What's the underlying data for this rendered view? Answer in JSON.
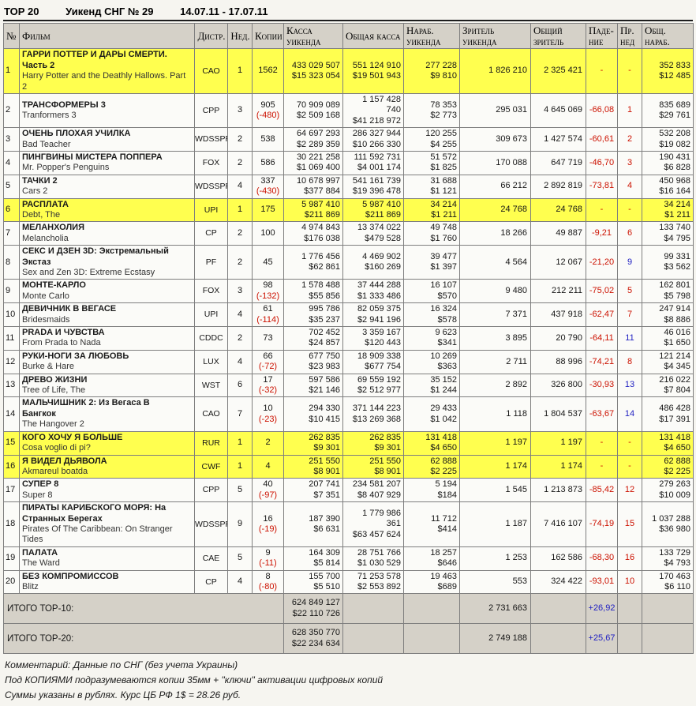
{
  "title": {
    "name": "ТОР 20",
    "subtitle": "Уикенд СНГ № 29",
    "dates": "14.07.11 - 17.07.11"
  },
  "columns": [
    "№",
    "Фильм",
    "Дистр.",
    "Нед.",
    "Копии",
    "Касса уикенда",
    "Общая касса",
    "Нараб. уикенда",
    "Зритель уикенда",
    "Общий зритель",
    "Паде-ние",
    "Пр. нед",
    "Общ. нараб."
  ],
  "colors": {
    "highlight_row": "#ffff4f",
    "header_bg": "#d5d1c8",
    "negative": "#cc1100",
    "positive": "#2121c2"
  },
  "rows": [
    {
      "rank": "1",
      "film_ru": "ГАРРИ ПОТТЕР И ДАРЫ СМЕРТИ.\nЧасть 2",
      "film_en": "Harry Potter and the Deathly Hallows. Part 2",
      "distributor": "САО",
      "week": "1",
      "copies": "1562",
      "copies_change": "",
      "weekend_rub": "433 029 507",
      "weekend_usd": "$15 323 054",
      "total_rub": "551 124 910",
      "total_usd": "$19 501 943",
      "narab_rub": "277 228",
      "narab_usd": "$9 810",
      "viewers_weekend": "1 826 210",
      "viewers_total": "2 325 421",
      "drop": "-",
      "drop_class": "down",
      "prev_week": "-",
      "prev_class": "down",
      "cume_narab_rub": "352 833",
      "cume_narab_usd": "$12 485",
      "row_class": "highlight"
    },
    {
      "rank": "2",
      "film_ru": "ТРАНСФОРМЕРЫ 3",
      "film_en": "Tranformers 3",
      "distributor": "CPP",
      "week": "3",
      "copies": "905",
      "copies_change": "(-480)",
      "weekend_rub": "70 909 089",
      "weekend_usd": "$2 509 168",
      "total_rub": "1 157 428 740",
      "total_usd": "$41 218 972",
      "narab_rub": "78 353",
      "narab_usd": "$2 773",
      "viewers_weekend": "295 031",
      "viewers_total": "4 645 069",
      "drop": "-66,08",
      "drop_class": "down",
      "prev_week": "1",
      "prev_class": "down",
      "cume_narab_rub": "835 689",
      "cume_narab_usd": "$29 761",
      "row_class": "normal"
    },
    {
      "rank": "3",
      "film_ru": "ОЧЕНЬ ПЛОХАЯ УЧИЛКА",
      "film_en": "Bad Teacher",
      "distributor": "WDSSPR",
      "week": "2",
      "copies": "538",
      "copies_change": "",
      "weekend_rub": "64 697 293",
      "weekend_usd": "$2 289 359",
      "total_rub": "286 327 944",
      "total_usd": "$10 266 330",
      "narab_rub": "120 255",
      "narab_usd": "$4 255",
      "viewers_weekend": "309 673",
      "viewers_total": "1 427 574",
      "drop": "-60,61",
      "drop_class": "down",
      "prev_week": "2",
      "prev_class": "down",
      "cume_narab_rub": "532 208",
      "cume_narab_usd": "$19 082",
      "row_class": "normal"
    },
    {
      "rank": "4",
      "film_ru": "ПИНГВИНЫ МИСТЕРА ПОППЕРА",
      "film_en": "Mr. Popper's Penguins",
      "distributor": "FOX",
      "week": "2",
      "copies": "586",
      "copies_change": "",
      "weekend_rub": "30 221 258",
      "weekend_usd": "$1 069 400",
      "total_rub": "111 592 731",
      "total_usd": "$4 001 174",
      "narab_rub": "51 572",
      "narab_usd": "$1 825",
      "viewers_weekend": "170 088",
      "viewers_total": "647 719",
      "drop": "-46,70",
      "drop_class": "down",
      "prev_week": "3",
      "prev_class": "down",
      "cume_narab_rub": "190 431",
      "cume_narab_usd": "$6 828",
      "row_class": "normal"
    },
    {
      "rank": "5",
      "film_ru": "ТАЧКИ 2",
      "film_en": "Cars 2",
      "distributor": "WDSSPR",
      "week": "4",
      "copies": "337",
      "copies_change": "(-430)",
      "weekend_rub": "10 678 997",
      "weekend_usd": "$377 884",
      "total_rub": "541 161 739",
      "total_usd": "$19 396 478",
      "narab_rub": "31 688",
      "narab_usd": "$1 121",
      "viewers_weekend": "66 212",
      "viewers_total": "2 892 819",
      "drop": "-73,81",
      "drop_class": "down",
      "prev_week": "4",
      "prev_class": "down",
      "cume_narab_rub": "450 968",
      "cume_narab_usd": "$16 164",
      "row_class": "normal"
    },
    {
      "rank": "6",
      "film_ru": "РАСПЛАТА",
      "film_en": "Debt, The",
      "distributor": "UPI",
      "week": "1",
      "copies": "175",
      "copies_change": "",
      "weekend_rub": "5 987 410",
      "weekend_usd": "$211 869",
      "total_rub": "5 987 410",
      "total_usd": "$211 869",
      "narab_rub": "34 214",
      "narab_usd": "$1 211",
      "viewers_weekend": "24 768",
      "viewers_total": "24 768",
      "drop": "-",
      "drop_class": "down",
      "prev_week": "-",
      "prev_class": "down",
      "cume_narab_rub": "34 214",
      "cume_narab_usd": "$1 211",
      "row_class": "highlight"
    },
    {
      "rank": "7",
      "film_ru": "МЕЛАНХОЛИЯ",
      "film_en": "Melancholia",
      "distributor": "CP",
      "week": "2",
      "copies": "100",
      "copies_change": "",
      "weekend_rub": "4 974 843",
      "weekend_usd": "$176 038",
      "total_rub": "13 374 022",
      "total_usd": "$479 528",
      "narab_rub": "49 748",
      "narab_usd": "$1 760",
      "viewers_weekend": "18 266",
      "viewers_total": "49 887",
      "drop": "-9,21",
      "drop_class": "down",
      "prev_week": "6",
      "prev_class": "down",
      "cume_narab_rub": "133 740",
      "cume_narab_usd": "$4 795",
      "row_class": "normal"
    },
    {
      "rank": "8",
      "film_ru": "СЕКС И ДЗЕН 3D: Экстремальный\nЭкстаз",
      "film_en": "Sex and Zen 3D: Extreme Ecstasy",
      "distributor": "PF",
      "week": "2",
      "copies": "45",
      "copies_change": "",
      "weekend_rub": "1 776 456",
      "weekend_usd": "$62 861",
      "total_rub": "4 469 902",
      "total_usd": "$160 269",
      "narab_rub": "39 477",
      "narab_usd": "$1 397",
      "viewers_weekend": "4 564",
      "viewers_total": "12 067",
      "drop": "-21,20",
      "drop_class": "down",
      "prev_week": "9",
      "prev_class": "up",
      "cume_narab_rub": "99 331",
      "cume_narab_usd": "$3 562",
      "row_class": "normal"
    },
    {
      "rank": "9",
      "film_ru": "МОНТЕ-КАРЛО",
      "film_en": "Monte Carlo",
      "distributor": "FOX",
      "week": "3",
      "copies": "98",
      "copies_change": "(-132)",
      "weekend_rub": "1 578 488",
      "weekend_usd": "$55 856",
      "total_rub": "37 444 288",
      "total_usd": "$1 333 486",
      "narab_rub": "16 107",
      "narab_usd": "$570",
      "viewers_weekend": "9 480",
      "viewers_total": "212 211",
      "drop": "-75,02",
      "drop_class": "down",
      "prev_week": "5",
      "prev_class": "down",
      "cume_narab_rub": "162 801",
      "cume_narab_usd": "$5 798",
      "row_class": "normal"
    },
    {
      "rank": "10",
      "film_ru": "ДЕВИЧНИК В ВЕГАСЕ",
      "film_en": "Bridesmaids",
      "distributor": "UPI",
      "week": "4",
      "copies": "61",
      "copies_change": "(-114)",
      "weekend_rub": "995 786",
      "weekend_usd": "$35 237",
      "total_rub": "82 059 375",
      "total_usd": "$2 941 196",
      "narab_rub": "16 324",
      "narab_usd": "$578",
      "viewers_weekend": "7 371",
      "viewers_total": "437 918",
      "drop": "-62,47",
      "drop_class": "down",
      "prev_week": "7",
      "prev_class": "down",
      "cume_narab_rub": "247 914",
      "cume_narab_usd": "$8 886",
      "row_class": "normal"
    },
    {
      "rank": "11",
      "film_ru": "PRADA И ЧУВСТВА",
      "film_en": "From Prada to Nada",
      "distributor": "CDDC",
      "week": "2",
      "copies": "73",
      "copies_change": "",
      "weekend_rub": "702 452",
      "weekend_usd": "$24 857",
      "total_rub": "3 359 167",
      "total_usd": "$120 443",
      "narab_rub": "9 623",
      "narab_usd": "$341",
      "viewers_weekend": "3 895",
      "viewers_total": "20 790",
      "drop": "-64,11",
      "drop_class": "down",
      "prev_week": "11",
      "prev_class": "up",
      "cume_narab_rub": "46 016",
      "cume_narab_usd": "$1 650",
      "row_class": "normal"
    },
    {
      "rank": "12",
      "film_ru": "РУКИ-НОГИ ЗА ЛЮБОВЬ",
      "film_en": "Burke & Hare",
      "distributor": "LUX",
      "week": "4",
      "copies": "66",
      "copies_change": "(-72)",
      "weekend_rub": "677 750",
      "weekend_usd": "$23 983",
      "total_rub": "18 909 338",
      "total_usd": "$677 754",
      "narab_rub": "10 269",
      "narab_usd": "$363",
      "viewers_weekend": "2 711",
      "viewers_total": "88 996",
      "drop": "-74,21",
      "drop_class": "down",
      "prev_week": "8",
      "prev_class": "down",
      "cume_narab_rub": "121 214",
      "cume_narab_usd": "$4 345",
      "row_class": "normal"
    },
    {
      "rank": "13",
      "film_ru": "ДРЕВО ЖИЗНИ",
      "film_en": "Tree of Life, The",
      "distributor": "WST",
      "week": "6",
      "copies": "17",
      "copies_change": "(-32)",
      "weekend_rub": "597 586",
      "weekend_usd": "$21 146",
      "total_rub": "69 559 192",
      "total_usd": "$2 512 977",
      "narab_rub": "35 152",
      "narab_usd": "$1 244",
      "viewers_weekend": "2 892",
      "viewers_total": "326 800",
      "drop": "-30,93",
      "drop_class": "down",
      "prev_week": "13",
      "prev_class": "up",
      "cume_narab_rub": "216 022",
      "cume_narab_usd": "$7 804",
      "row_class": "normal"
    },
    {
      "rank": "14",
      "film_ru": "МАЛЬЧИШНИК 2: Из Вегаса В\nБангкок",
      "film_en": "The Hangover 2",
      "distributor": "САО",
      "week": "7",
      "copies": "10",
      "copies_change": "(-23)",
      "weekend_rub": "294 330",
      "weekend_usd": "$10 415",
      "total_rub": "371 144 223",
      "total_usd": "$13 269 368",
      "narab_rub": "29 433",
      "narab_usd": "$1 042",
      "viewers_weekend": "1 118",
      "viewers_total": "1 804 537",
      "drop": "-63,67",
      "drop_class": "down",
      "prev_week": "14",
      "prev_class": "up",
      "cume_narab_rub": "486 428",
      "cume_narab_usd": "$17 391",
      "row_class": "normal"
    },
    {
      "rank": "15",
      "film_ru": "КОГО ХОЧУ Я БОЛЬШЕ",
      "film_en": "Cosa voglio di pi?",
      "distributor": "RUR",
      "week": "1",
      "copies": "2",
      "copies_change": "",
      "weekend_rub": "262 835",
      "weekend_usd": "$9 301",
      "total_rub": "262 835",
      "total_usd": "$9 301",
      "narab_rub": "131 418",
      "narab_usd": "$4 650",
      "viewers_weekend": "1 197",
      "viewers_total": "1 197",
      "drop": "-",
      "drop_class": "down",
      "prev_week": "-",
      "prev_class": "down",
      "cume_narab_rub": "131 418",
      "cume_narab_usd": "$4 650",
      "row_class": "highlight"
    },
    {
      "rank": "16",
      "film_ru": "Я ВИДЕЛ ДЬЯВОЛА",
      "film_en": "Akmareul boatda",
      "distributor": "CWF",
      "week": "1",
      "copies": "4",
      "copies_change": "",
      "weekend_rub": "251 550",
      "weekend_usd": "$8 901",
      "total_rub": "251 550",
      "total_usd": "$8 901",
      "narab_rub": "62 888",
      "narab_usd": "$2 225",
      "viewers_weekend": "1 174",
      "viewers_total": "1 174",
      "drop": "-",
      "drop_class": "down",
      "prev_week": "-",
      "prev_class": "down",
      "cume_narab_rub": "62 888",
      "cume_narab_usd": "$2 225",
      "row_class": "highlight"
    },
    {
      "rank": "17",
      "film_ru": "СУПЕР 8",
      "film_en": "Super 8",
      "distributor": "CPP",
      "week": "5",
      "copies": "40",
      "copies_change": "(-97)",
      "weekend_rub": "207 741",
      "weekend_usd": "$7 351",
      "total_rub": "234 581 207",
      "total_usd": "$8 407 929",
      "narab_rub": "5 194",
      "narab_usd": "$184",
      "viewers_weekend": "1 545",
      "viewers_total": "1 213 873",
      "drop": "-85,42",
      "drop_class": "down",
      "prev_week": "12",
      "prev_class": "down",
      "cume_narab_rub": "279 263",
      "cume_narab_usd": "$10 009",
      "row_class": "normal"
    },
    {
      "rank": "18",
      "film_ru": "ПИРАТЫ КАРИБСКОГО МОРЯ: На\nСтранных Берегах",
      "film_en": "Pirates Of The Caribbean: On Stranger Tides",
      "distributor": "WDSSPR",
      "week": "9",
      "copies": "16",
      "copies_change": "(-19)",
      "weekend_rub": "187 390",
      "weekend_usd": "$6 631",
      "total_rub": "1 779 986 361",
      "total_usd": "$63 457 624",
      "narab_rub": "11 712",
      "narab_usd": "$414",
      "viewers_weekend": "1 187",
      "viewers_total": "7 416 107",
      "drop": "-74,19",
      "drop_class": "down",
      "prev_week": "15",
      "prev_class": "down",
      "cume_narab_rub": "1 037 288",
      "cume_narab_usd": "$36 980",
      "row_class": "normal"
    },
    {
      "rank": "19",
      "film_ru": "ПАЛАТА",
      "film_en": "The Ward",
      "distributor": "CAE",
      "week": "5",
      "copies": "9",
      "copies_change": "(-11)",
      "weekend_rub": "164 309",
      "weekend_usd": "$5 814",
      "total_rub": "28 751 766",
      "total_usd": "$1 030 529",
      "narab_rub": "18 257",
      "narab_usd": "$646",
      "viewers_weekend": "1 253",
      "viewers_total": "162 586",
      "drop": "-68,30",
      "drop_class": "down",
      "prev_week": "16",
      "prev_class": "down",
      "cume_narab_rub": "133 729",
      "cume_narab_usd": "$4 793",
      "row_class": "normal"
    },
    {
      "rank": "20",
      "film_ru": "БЕЗ КОМПРОМИССОВ",
      "film_en": "Blitz",
      "distributor": "CP",
      "week": "4",
      "copies": "8",
      "copies_change": "(-80)",
      "weekend_rub": "155 700",
      "weekend_usd": "$5 510",
      "total_rub": "71 253 578",
      "total_usd": "$2 553 892",
      "narab_rub": "19 463",
      "narab_usd": "$689",
      "viewers_weekend": "553",
      "viewers_total": "324 422",
      "drop": "-93,01",
      "drop_class": "down",
      "prev_week": "10",
      "prev_class": "down",
      "cume_narab_rub": "170 463",
      "cume_narab_usd": "$6 110",
      "row_class": "normal"
    }
  ],
  "totals": [
    {
      "label": "ИТОГО ТОР-10:",
      "weekend_rub": "624 849 127",
      "weekend_usd": "$22 110 726",
      "viewers_weekend": "2 731 663",
      "change": "+26,92",
      "change_class": "up"
    },
    {
      "label": "ИТОГО ТОР-20:",
      "weekend_rub": "628 350 770",
      "weekend_usd": "$22 234 634",
      "viewers_weekend": "2 749 188",
      "change": "+25,67",
      "change_class": "up"
    }
  ],
  "footer": {
    "lines": [
      "Комментарий: Данные по СНГ (без учета Украины)",
      "Под КОПИЯМИ подразумеваются копии 35мм + \"ключи\" активации цифровых копий",
      "Суммы указаны в рублях. Курс ЦБ РФ 1$ = 28.26 руб."
    ]
  }
}
